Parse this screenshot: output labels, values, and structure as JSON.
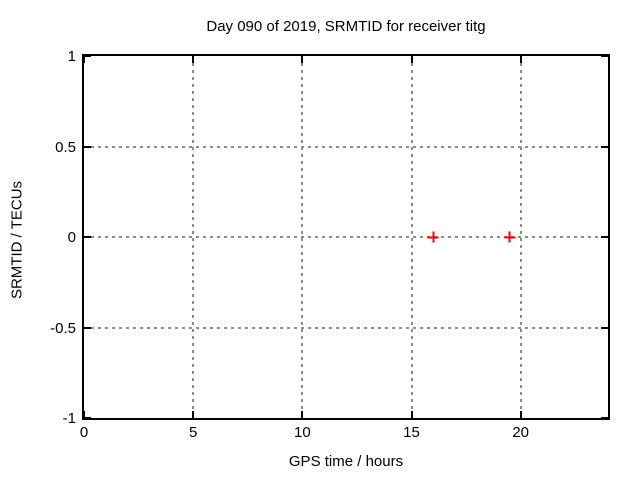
{
  "chart_data": {
    "type": "scatter",
    "title": "Day 090 of 2019, SRMTID for receiver titg",
    "xlabel": "GPS time / hours",
    "ylabel": "SRMTID / TECUs",
    "xlim": [
      0,
      24
    ],
    "ylim": [
      -1,
      1
    ],
    "xticks": [
      0,
      5,
      10,
      15,
      20
    ],
    "xtick_labels": [
      "0",
      "5",
      "10",
      "15",
      "20"
    ],
    "yticks": [
      -1,
      -0.5,
      0,
      0.5,
      1
    ],
    "ytick_labels": [
      "-1",
      "-0.5",
      "0",
      "0.5",
      "1"
    ],
    "grid": true,
    "grid_style": "dotted",
    "legend": "none",
    "series": [
      {
        "name": "SRMTID",
        "marker": "plus",
        "color": "#ff0000",
        "points": [
          {
            "x": 16.0,
            "y": 0.0
          },
          {
            "x": 19.5,
            "y": 0.0
          }
        ]
      }
    ],
    "colors": {
      "background": "#ffffff",
      "border": "#000000",
      "grid": "#8c8c8c",
      "text": "#000000",
      "marker": "#ff0000"
    }
  }
}
